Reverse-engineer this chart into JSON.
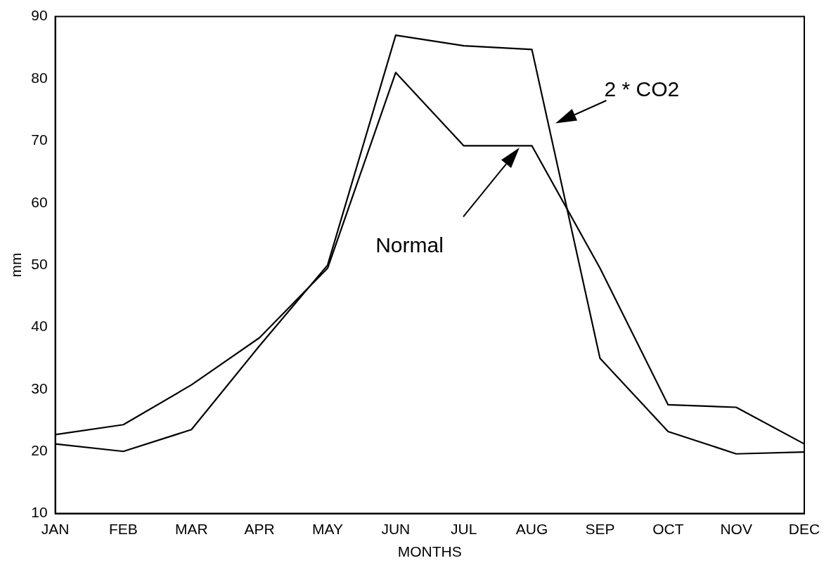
{
  "chart_data": {
    "type": "line",
    "xlabel": "MONTHS",
    "ylabel": "mm",
    "categories": [
      "JAN",
      "FEB",
      "MAR",
      "APR",
      "MAY",
      "JUN",
      "JUL",
      "AUG",
      "SEP",
      "OCT",
      "NOV",
      "DEC"
    ],
    "series": [
      {
        "color": "#000000",
        "values": [
          22.7,
          24.3,
          30.7,
          38.3,
          49.5,
          81,
          69.2,
          69.2,
          49.5,
          27.5,
          27.1,
          21.2
        ]
      },
      {
        "color": "#000000",
        "values": [
          21.2,
          20,
          23.5,
          37,
          50,
          87,
          85.3,
          84.7,
          35,
          23.2,
          19.6,
          19.9
        ]
      }
    ],
    "ylim": [
      10,
      90
    ],
    "yticks": [
      10,
      20,
      30,
      40,
      50,
      60,
      70,
      80,
      90
    ],
    "grid": false,
    "legend": false,
    "marker": "none",
    "line_style": "solid",
    "annotations": [
      "2 * CO2",
      "Normal"
    ]
  }
}
